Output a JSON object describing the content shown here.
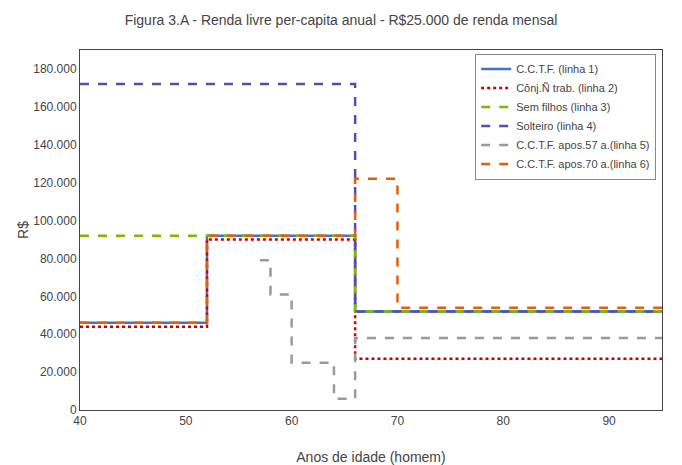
{
  "chart_data": {
    "type": "line",
    "title": "Figura 3.A - Renda livre per-capita anual - R$25.000 de renda mensal",
    "x_label": "Anos de idade (homem)",
    "y_label": "R$",
    "xlim": [
      40,
      95
    ],
    "ylim": [
      0,
      190000
    ],
    "xticks": [
      40,
      50,
      60,
      70,
      80,
      90
    ],
    "yticks": [
      0,
      {
        "value": 20000,
        "label": "20.000"
      },
      {
        "value": 40000,
        "label": "40.000"
      },
      {
        "value": 60000,
        "label": "60.000"
      },
      {
        "value": 80000,
        "label": "80.000"
      },
      {
        "value": 100000,
        "label": "100.000"
      },
      {
        "value": 120000,
        "label": "120.000"
      },
      {
        "value": 140000,
        "label": "140.000"
      },
      {
        "value": 160000,
        "label": "160.000"
      },
      {
        "value": 180000,
        "label": "180.000"
      }
    ],
    "grid": false,
    "legend": "upper right",
    "series": [
      {
        "name": "C.C.T.F. (linha 1)",
        "color": "#4472C4",
        "line_style": "solid",
        "x": [
          40,
          52,
          52,
          66,
          66,
          95
        ],
        "values": [
          46000,
          46000,
          92000,
          92000,
          52000,
          52000
        ]
      },
      {
        "name": "Cônj.Ñ trab. (linha 2)",
        "color": "#CC0000",
        "line_style": "dotted",
        "x": [
          40,
          52,
          52,
          66,
          66,
          95
        ],
        "values": [
          44000,
          44000,
          90000,
          90000,
          27000,
          27000
        ]
      },
      {
        "name": "Sem filhos (linha 3)",
        "color": "#7FB800",
        "line_style": "dashed",
        "x": [
          40,
          66,
          66,
          95
        ],
        "values": [
          92000,
          92000,
          52000,
          52000
        ]
      },
      {
        "name": "Solteiro (linha 4)",
        "color": "#5050B0",
        "line_style": "dashed",
        "x": [
          40,
          66,
          66,
          95
        ],
        "values": [
          172000,
          172000,
          52000,
          52000
        ]
      },
      {
        "name": "C.C.T.F. apos.57 a.(linha 5)",
        "color": "#999999",
        "line_style": "dashed",
        "x": [
          57,
          58,
          58,
          60,
          60,
          64,
          64,
          66,
          66,
          95
        ],
        "values": [
          79000,
          79000,
          61000,
          61000,
          25000,
          25000,
          6000,
          6000,
          38000,
          38000
        ]
      },
      {
        "name": "C.C.T.F. apos.70 a.(linha 6)",
        "color": "#E06010",
        "line_style": "dashed",
        "x": [
          40,
          52,
          52,
          66,
          66,
          70,
          70,
          95
        ],
        "values": [
          46000,
          46000,
          92000,
          92000,
          122000,
          122000,
          54000,
          54000
        ]
      }
    ]
  }
}
